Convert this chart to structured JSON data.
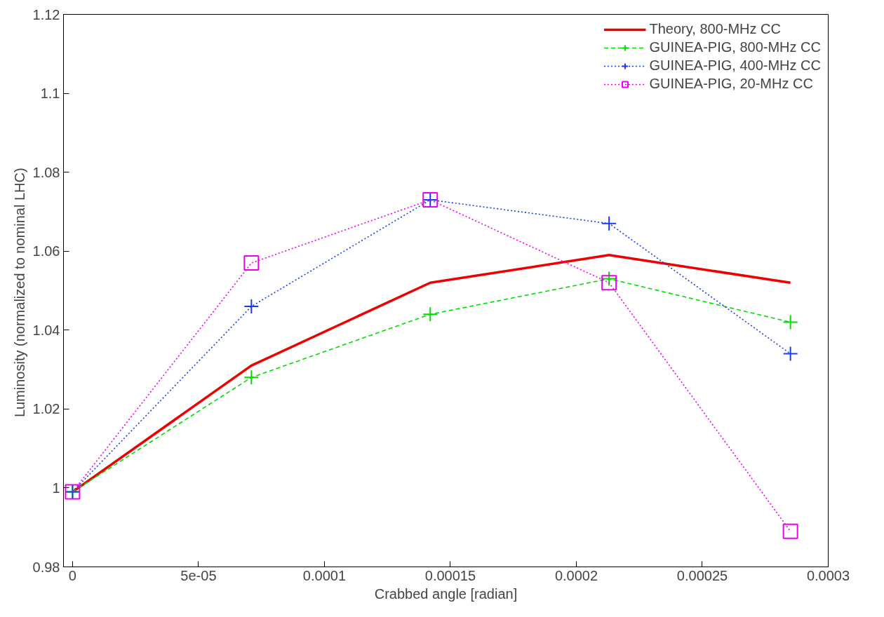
{
  "chart_data": {
    "type": "line",
    "xlabel": "Crabbed angle [radian]",
    "ylabel": "Luminosity  (normalized to nominal LHC)",
    "x": [
      0,
      7.1e-05,
      0.000142,
      0.000213,
      0.000285
    ],
    "series": [
      {
        "name": "Theory, 800-MHz CC",
        "color": "#ee0000",
        "values": [
          0.999,
          1.031,
          1.052,
          1.059,
          1.052
        ],
        "marker": "none",
        "line_style": "solid"
      },
      {
        "name": "GUINEA-PIG, 800-MHz CC",
        "color": "#00dd00",
        "values": [
          0.999,
          1.028,
          1.044,
          1.053,
          1.042
        ],
        "marker": "cross",
        "line_style": "dashed"
      },
      {
        "name": "GUINEA-PIG, 400-MHz CC",
        "color": "#1a3cf0",
        "values": [
          0.999,
          1.046,
          1.073,
          1.067,
          1.034
        ],
        "marker": "cross",
        "line_style": "dotted"
      },
      {
        "name": "GUINEA-PIG, 20-MHz CC",
        "color": "#ee00ee",
        "values": [
          0.999,
          1.057,
          1.073,
          1.052,
          0.989
        ],
        "marker": "square",
        "line_style": "dotted"
      }
    ],
    "xlim": [
      -3.6e-06,
      0.0003
    ],
    "ylim": [
      0.98,
      1.12
    ],
    "xticks": [
      0,
      {
        "value": 5e-05,
        "label": "5e-05"
      },
      0.0001,
      0.00015,
      0.0002,
      0.00025,
      0.0003
    ],
    "yticks": [
      0.98,
      1,
      1.02,
      1.04,
      1.06,
      1.08,
      1.1,
      1.12
    ],
    "grid": false,
    "legend": "top right"
  }
}
